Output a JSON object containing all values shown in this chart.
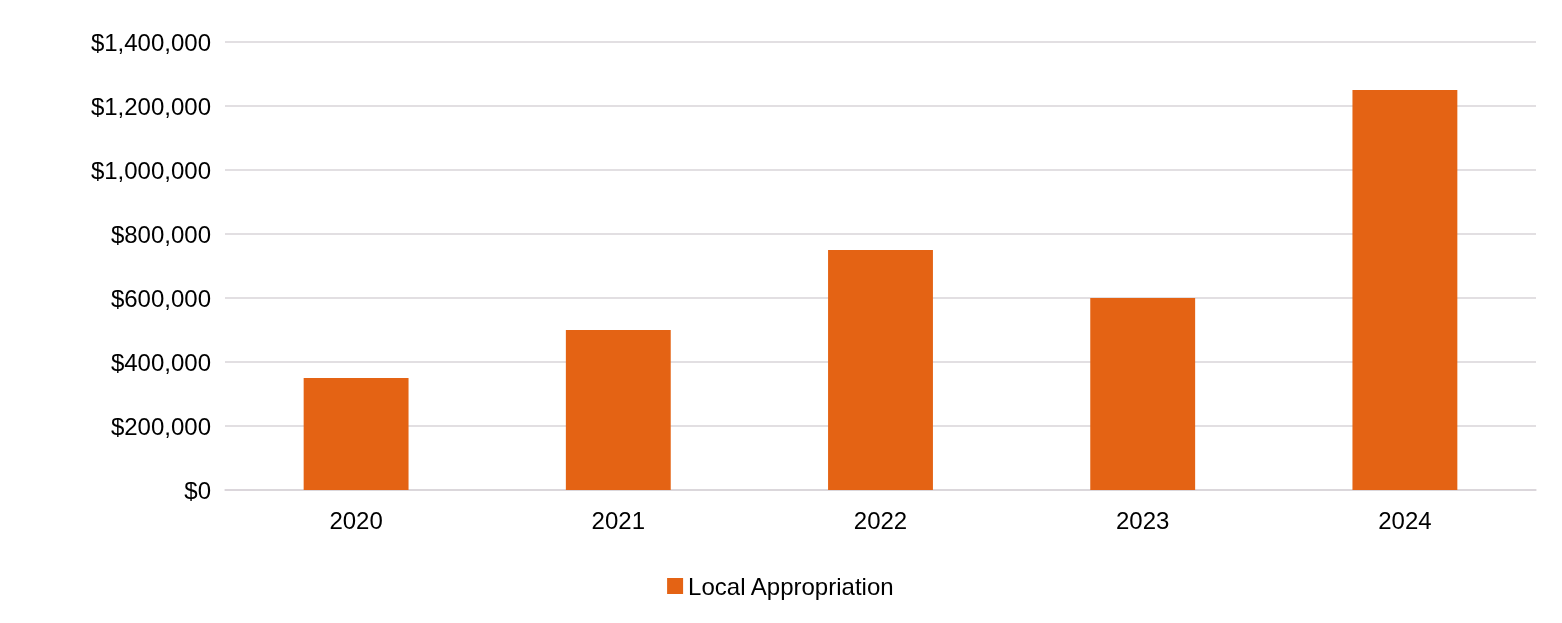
{
  "chart_data": {
    "type": "bar",
    "categories": [
      "2020",
      "2021",
      "2022",
      "2023",
      "2024"
    ],
    "series": [
      {
        "name": "Local Appropriation",
        "color": "#e46314",
        "values": [
          350000,
          500000,
          750000,
          600000,
          1250000
        ]
      }
    ],
    "ylim": [
      0,
      1400000
    ],
    "yticks": [
      {
        "value": 0,
        "label": "$0"
      },
      {
        "value": 200000,
        "label": "$200,000"
      },
      {
        "value": 400000,
        "label": "$400,000"
      },
      {
        "value": 600000,
        "label": "$600,000"
      },
      {
        "value": 800000,
        "label": "$800,000"
      },
      {
        "value": 1000000,
        "label": "$1,000,000"
      },
      {
        "value": 1200000,
        "label": "$1,200,000"
      },
      {
        "value": 1400000,
        "label": "$1,400,000"
      }
    ],
    "grid": "y",
    "legend": "bottom"
  }
}
